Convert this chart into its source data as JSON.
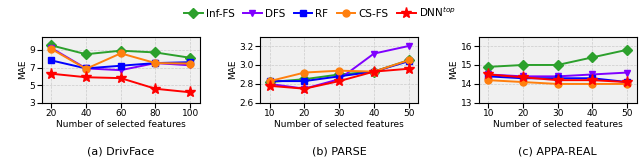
{
  "legend_entries": [
    "Inf-FS",
    "DFS",
    "RF",
    "CS-FS",
    "DNN$^{top}$"
  ],
  "colors": [
    "#2ca02c",
    "#7f00ff",
    "#0000ff",
    "#ff7f0e",
    "#ff0000"
  ],
  "markers": [
    "D",
    "v",
    "s",
    "o",
    "*"
  ],
  "markersize": [
    5,
    5,
    4,
    5,
    8
  ],
  "drivface": {
    "x": [
      20,
      40,
      60,
      80,
      100
    ],
    "ylim": [
      3,
      10.5
    ],
    "yticks": [
      3,
      5,
      7,
      9
    ],
    "subtitle": "(a) DrivFace",
    "ylabel": "MAE",
    "xlabel": "Number of selected features",
    "series": {
      "Inf-FS": [
        9.5,
        8.5,
        8.9,
        8.7,
        8.1
      ],
      "DFS": [
        9.2,
        6.9,
        6.7,
        7.5,
        7.25
      ],
      "RF": [
        7.8,
        6.9,
        7.2,
        7.5,
        7.6
      ],
      "CS-FS": [
        9.1,
        6.85,
        8.6,
        7.5,
        7.45
      ],
      "DNN_top": [
        6.3,
        5.9,
        5.8,
        4.6,
        4.2
      ]
    }
  },
  "parse": {
    "x": [
      10,
      20,
      30,
      40,
      50
    ],
    "ylim": [
      2.6,
      3.3
    ],
    "yticks": [
      2.6,
      2.8,
      3.0,
      3.2
    ],
    "subtitle": "(b) PARSE",
    "ylabel": "MAE",
    "xlabel": "Number of selected features",
    "series": {
      "Inf-FS": [
        2.82,
        2.85,
        2.9,
        2.93,
        3.05
      ],
      "DFS": [
        2.8,
        2.75,
        2.85,
        3.12,
        3.2
      ],
      "RF": [
        2.83,
        2.83,
        2.88,
        2.93,
        3.04
      ],
      "CS-FS": [
        2.83,
        2.92,
        2.94,
        2.93,
        3.05
      ],
      "DNN_top": [
        2.78,
        2.75,
        2.83,
        2.93,
        2.96
      ]
    }
  },
  "appa_real": {
    "x": [
      10,
      20,
      30,
      40,
      50
    ],
    "ylim": [
      13,
      16.5
    ],
    "yticks": [
      13,
      14,
      15,
      16
    ],
    "subtitle": "(c) APPA-REAL",
    "ylabel": "MAE",
    "xlabel": "Number of selected features",
    "series": {
      "Inf-FS": [
        14.9,
        15.0,
        15.0,
        15.4,
        15.8
      ],
      "DFS": [
        14.5,
        14.4,
        14.4,
        14.5,
        14.6
      ],
      "RF": [
        14.4,
        14.3,
        14.3,
        14.3,
        14.1
      ],
      "CS-FS": [
        14.2,
        14.1,
        14.0,
        14.0,
        14.0
      ],
      "DNN_top": [
        14.5,
        14.35,
        14.2,
        14.2,
        14.1
      ]
    }
  },
  "linewidth": 1.4,
  "legend_fontsize": 7.5,
  "axis_fontsize": 6.5,
  "subtitle_fontsize": 8,
  "tick_fontsize": 6.5,
  "grid_color": "#cccccc",
  "grid_linestyle": "--",
  "grid_linewidth": 0.5,
  "bg_color": "#f0f0f0"
}
